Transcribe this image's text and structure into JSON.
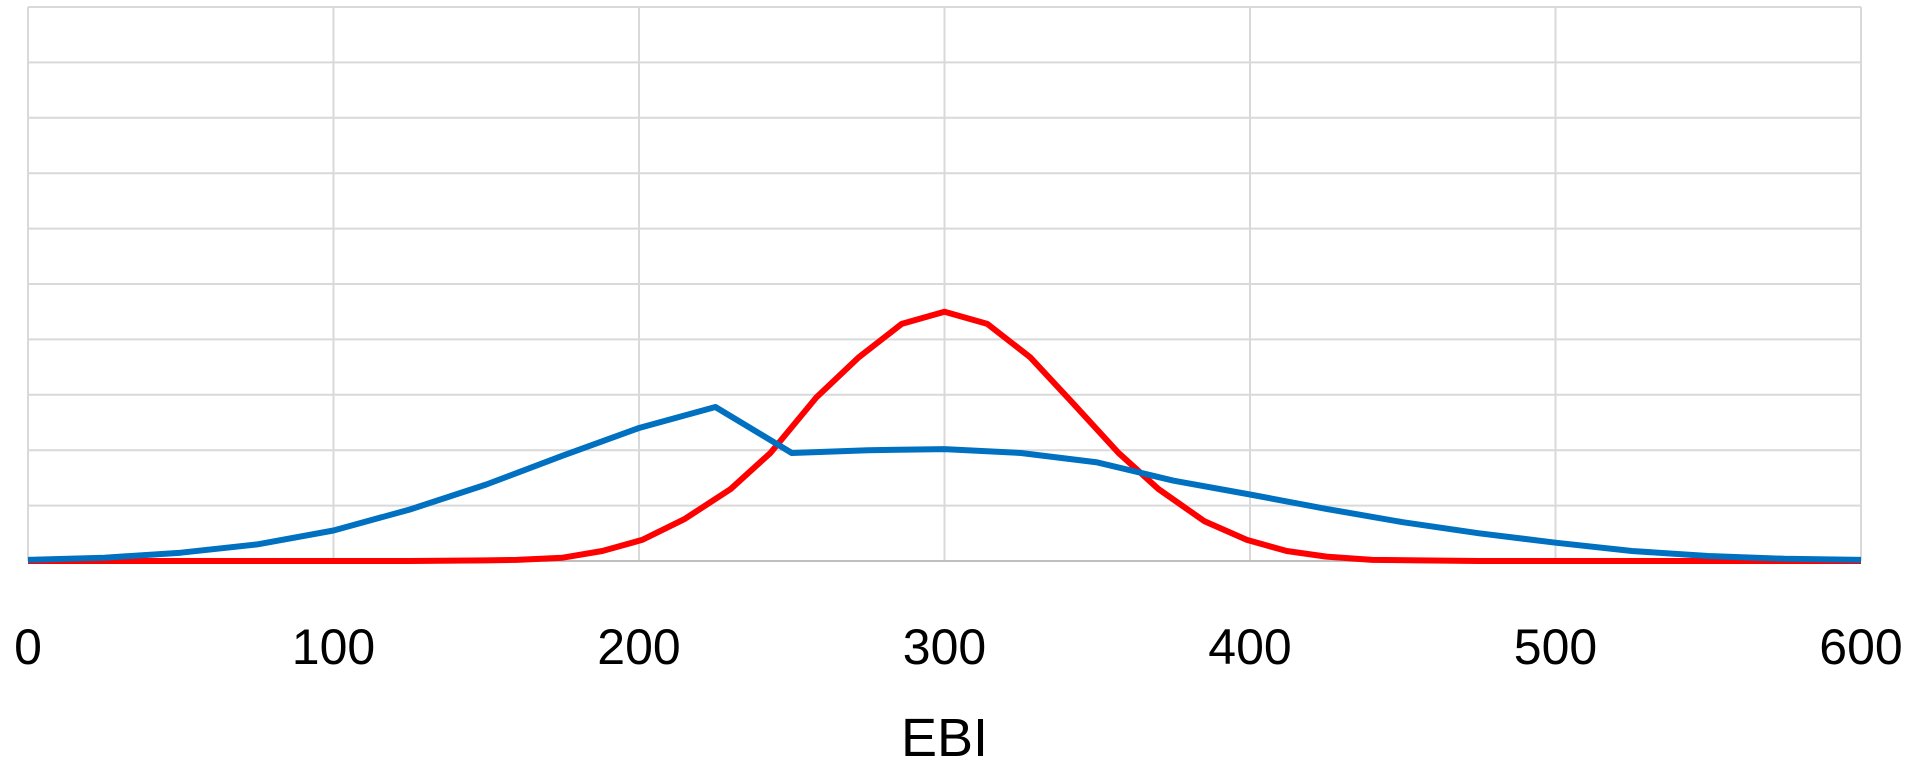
{
  "chart_data": {
    "type": "line",
    "title": "",
    "xlabel": "EBI",
    "ylabel": "",
    "xlim": [
      0,
      600
    ],
    "ylim": [
      0,
      10
    ],
    "x_ticks": [
      0,
      100,
      200,
      300,
      400,
      500,
      600
    ],
    "x_tick_labels": [
      "0",
      "100",
      "200",
      "300",
      "400",
      "500",
      "600"
    ],
    "y_gridlines": 10,
    "grid": true,
    "legend": "none",
    "series": [
      {
        "color": "#ff0000",
        "x": [
          0,
          25,
          50,
          75,
          100,
          125,
          150,
          160,
          175,
          188,
          201,
          215,
          230,
          243,
          258,
          272,
          286,
          300,
          314,
          328,
          342,
          357,
          370,
          385,
          399,
          412,
          425,
          440,
          455,
          475,
          500,
          525,
          550,
          575,
          600
        ],
        "y": [
          0,
          0,
          0,
          0,
          0,
          0,
          0.01,
          0.02,
          0.06,
          0.18,
          0.38,
          0.76,
          1.3,
          1.95,
          2.95,
          3.68,
          4.28,
          4.5,
          4.28,
          3.68,
          2.85,
          1.95,
          1.3,
          0.72,
          0.38,
          0.18,
          0.08,
          0.02,
          0.01,
          0,
          0,
          0,
          0,
          0,
          0
        ]
      },
      {
        "color": "#0070c0",
        "x": [
          0,
          25,
          50,
          75,
          100,
          125,
          150,
          175,
          200,
          225,
          250,
          275,
          300,
          325,
          350,
          375,
          400,
          425,
          450,
          475,
          500,
          525,
          550,
          575,
          600
        ],
        "y": [
          0.02,
          0.06,
          0.15,
          0.3,
          0.55,
          0.93,
          1.38,
          1.9,
          2.4,
          2.78,
          1.95,
          2.0,
          2.02,
          1.95,
          1.78,
          1.45,
          1.2,
          0.94,
          0.7,
          0.5,
          0.33,
          0.18,
          0.09,
          0.04,
          0.02
        ]
      }
    ]
  }
}
